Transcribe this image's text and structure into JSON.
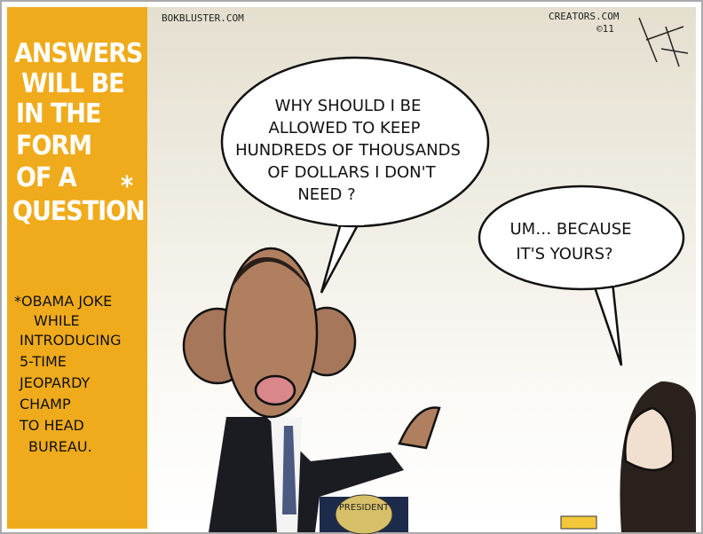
{
  "sidebar": {
    "title_lines": [
      "ANSWERS",
      "WILL BE",
      "IN THE",
      "FORM",
      "OF A",
      "QUESTION"
    ],
    "asterisk": "*",
    "note_lines": [
      "*OBAMA JOKE",
      "WHILE",
      "INTRODUCING",
      "5-TIME",
      "JEOPARDY",
      "CHAMP",
      "TO HEAD",
      "BUREAU."
    ]
  },
  "credits": {
    "site": "BOKBLUSTER.COM",
    "syndicate": "CREATORS.COM",
    "year": "©11"
  },
  "bubbles": [
    {
      "lines": [
        "WHY SHOULD I BE",
        "ALLOWED TO KEEP",
        "HUNDREDS OF THOUSANDS",
        "OF DOLLARS I DON'T",
        "NEED ?"
      ]
    },
    {
      "lines": [
        "UM… BECAUSE",
        "IT'S YOURS?"
      ]
    }
  ],
  "podium_text": "PRESIDENT"
}
